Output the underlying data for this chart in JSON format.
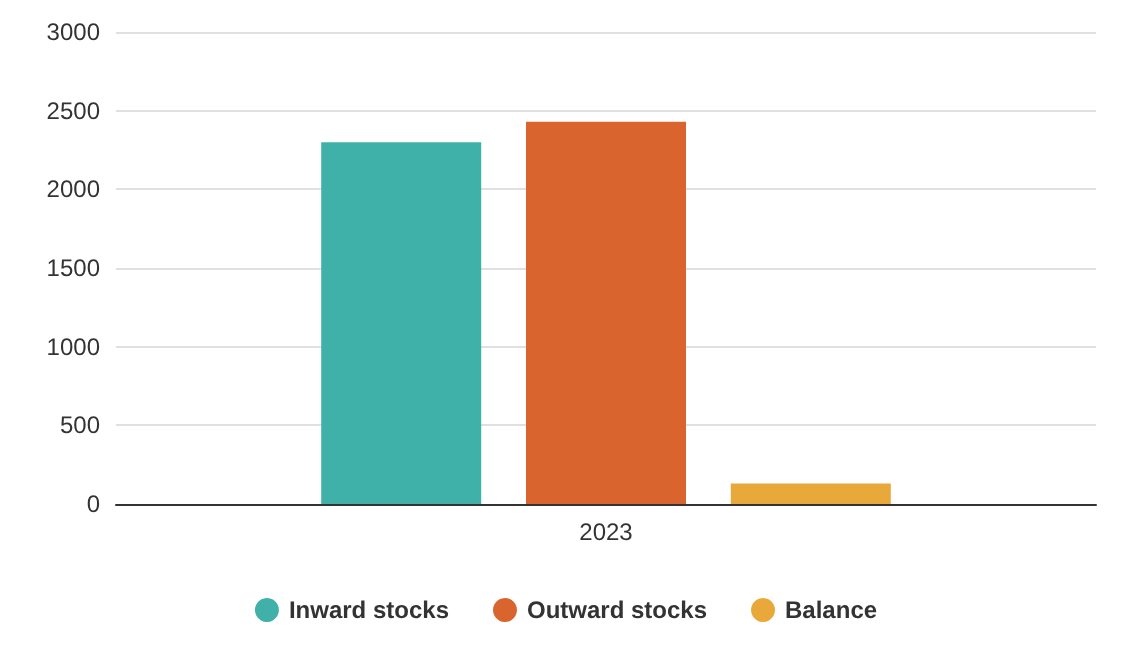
{
  "chart_data": {
    "type": "bar",
    "categories": [
      "2023"
    ],
    "series": [
      {
        "name": "Inward stocks",
        "color": "#40b1a9",
        "values": [
          2300
        ]
      },
      {
        "name": "Outward stocks",
        "color": "#da642e",
        "values": [
          2430
        ]
      },
      {
        "name": "Balance",
        "color": "#e9a93a",
        "values": [
          130
        ]
      }
    ],
    "ylim": [
      0,
      3000
    ],
    "yticks": [
      0,
      500,
      1000,
      1500,
      2000,
      2500,
      3000
    ],
    "grid": "y",
    "legend": "bottom"
  }
}
